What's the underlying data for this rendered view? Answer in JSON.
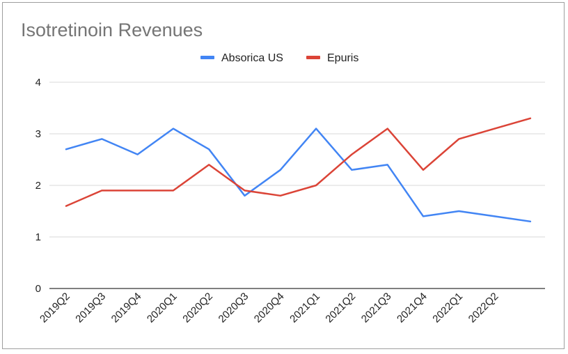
{
  "chart_data": {
    "type": "line",
    "title": "Isotretinoin Revenues",
    "xlabel": "",
    "ylabel": "",
    "categories": [
      "2019Q2",
      "2019Q3",
      "2019Q4",
      "2020Q1",
      "2020Q2",
      "2020Q3",
      "2020Q4",
      "2021Q1",
      "2021Q2",
      "2021Q3",
      "2021Q4",
      "2022Q1",
      "2022Q2",
      ""
    ],
    "series": [
      {
        "name": "Absorica US",
        "color": "#4285f4",
        "values": [
          2.7,
          2.9,
          2.6,
          3.1,
          2.7,
          1.8,
          2.3,
          3.1,
          2.3,
          2.4,
          1.4,
          1.5,
          1.4,
          1.3
        ]
      },
      {
        "name": "Epuris",
        "color": "#db4437",
        "values": [
          1.6,
          1.9,
          1.9,
          1.9,
          2.4,
          1.9,
          1.8,
          2.0,
          2.6,
          3.1,
          2.3,
          2.9,
          3.1,
          3.3
        ]
      }
    ],
    "ylim": [
      0,
      4
    ],
    "yticks": [
      0,
      1,
      2,
      3,
      4
    ],
    "grid": true,
    "legend_position": "top"
  }
}
